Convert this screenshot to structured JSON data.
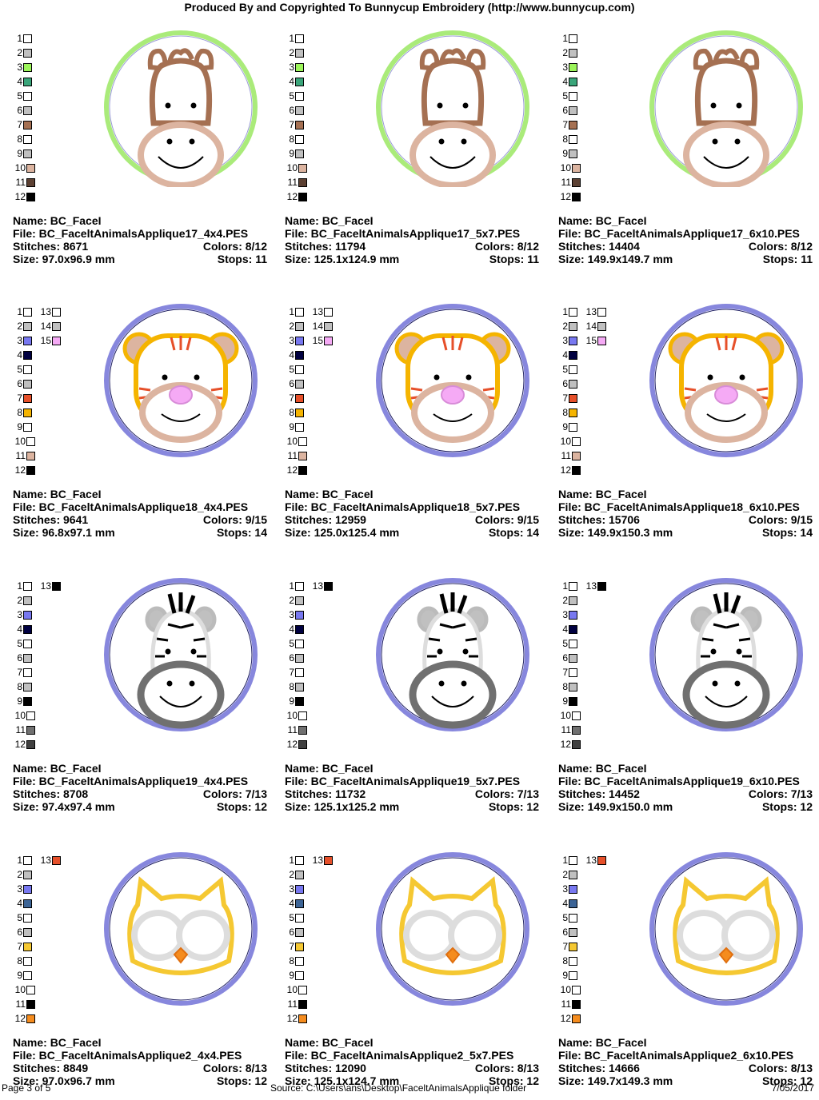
{
  "header": "Produced By and Copyrighted To Bunnycup Embroidery (http://www.bunnycup.com)",
  "labels": {
    "name": "Name:",
    "file": "File:",
    "stitches": "Stitches:",
    "colors": "Colors:",
    "size": "Size:",
    "stops": "Stops:"
  },
  "designs": [
    {
      "animal": "horse",
      "ring_color": "#8ee44e",
      "palette": [
        "#ffffff",
        "#c0c0c0",
        "#9cf55a",
        "#3aa57a",
        "#ffffff",
        "#c0c0c0",
        "#a57052",
        "#ffffff",
        "#c0c0c0",
        "#dcb4a0",
        "#5c4032",
        "#000000"
      ],
      "extra": [],
      "variants": [
        {
          "name": "BC_FaceI",
          "file": "BC_FaceltAnimalsApplique17_4x4.PES",
          "stitches": "8671",
          "colors": "8/12",
          "size": "97.0x96.9 mm",
          "stops": "11"
        },
        {
          "name": "BC_FaceI",
          "file": "BC_FaceltAnimalsApplique17_5x7.PES",
          "stitches": "11794",
          "colors": "8/12",
          "size": "125.1x124.9 mm",
          "stops": "11"
        },
        {
          "name": "BC_FaceI",
          "file": "BC_FaceltAnimalsApplique17_6x10.PES",
          "stitches": "14404",
          "colors": "8/12",
          "size": "149.9x149.7 mm",
          "stops": "11"
        }
      ]
    },
    {
      "animal": "tiger",
      "ring_color": "#5f5fd2",
      "palette": [
        "#ffffff",
        "#c0c0c0",
        "#7878f0",
        "#000040",
        "#ffffff",
        "#c0c0c0",
        "#e6502a",
        "#f5b400",
        "#ffffff",
        "#ffffff",
        "#dcb4a0",
        "#000000"
      ],
      "extra": [
        "#ffffff",
        "#c0c0c0",
        "#f5aaf5"
      ],
      "variants": [
        {
          "name": "BC_FaceI",
          "file": "BC_FaceltAnimalsApplique18_4x4.PES",
          "stitches": "9641",
          "colors": "9/15",
          "size": "96.8x97.1 mm",
          "stops": "14"
        },
        {
          "name": "BC_FaceI",
          "file": "BC_FaceltAnimalsApplique18_5x7.PES",
          "stitches": "12959",
          "colors": "9/15",
          "size": "125.0x125.4 mm",
          "stops": "14"
        },
        {
          "name": "BC_FaceI",
          "file": "BC_FaceltAnimalsApplique18_6x10.PES",
          "stitches": "15706",
          "colors": "9/15",
          "size": "149.9x150.3 mm",
          "stops": "14"
        }
      ]
    },
    {
      "animal": "zebra",
      "ring_color": "#5f5fd2",
      "palette": [
        "#ffffff",
        "#c0c0c0",
        "#7878f0",
        "#000040",
        "#ffffff",
        "#c0c0c0",
        "#ffffff",
        "#c0c0c0",
        "#000000",
        "#ffffff",
        "#707070",
        "#404040"
      ],
      "extra": [
        "#000000"
      ],
      "variants": [
        {
          "name": "BC_FaceI",
          "file": "BC_FaceltAnimalsApplique19_4x4.PES",
          "stitches": "8708",
          "colors": "7/13",
          "size": "97.4x97.4 mm",
          "stops": "12"
        },
        {
          "name": "BC_FaceI",
          "file": "BC_FaceltAnimalsApplique19_5x7.PES",
          "stitches": "11732",
          "colors": "7/13",
          "size": "125.1x125.2 mm",
          "stops": "12"
        },
        {
          "name": "BC_FaceI",
          "file": "BC_FaceltAnimalsApplique19_6x10.PES",
          "stitches": "14452",
          "colors": "7/13",
          "size": "149.9x150.0 mm",
          "stops": "12"
        }
      ]
    },
    {
      "animal": "owl",
      "ring_color": "#5f5fd2",
      "palette": [
        "#ffffff",
        "#c0c0c0",
        "#7878f0",
        "#3c6496",
        "#ffffff",
        "#c0c0c0",
        "#f5c832",
        "#ffffff",
        "#ffffff",
        "#ffffff",
        "#000000",
        "#f58c1e"
      ],
      "extra": [
        "#e6502a"
      ],
      "variants": [
        {
          "name": "BC_FaceI",
          "file": "BC_FaceltAnimalsApplique2_4x4.PES",
          "stitches": "8849",
          "colors": "8/13",
          "size": "97.0x96.7 mm",
          "stops": "12"
        },
        {
          "name": "BC_FaceI",
          "file": "BC_FaceltAnimalsApplique2_5x7.PES",
          "stitches": "12090",
          "colors": "8/13",
          "size": "125.1x124.7 mm",
          "stops": "12"
        },
        {
          "name": "BC_FaceI",
          "file": "BC_FaceltAnimalsApplique2_6x10.PES",
          "stitches": "14666",
          "colors": "8/13",
          "size": "149.7x149.3 mm",
          "stops": "12"
        }
      ]
    }
  ],
  "footer": {
    "page": "Page 3 of 5",
    "source": "Source: C:\\Users\\ans\\Desktop\\FaceltAnimalsApplique folder",
    "date": "7/05/2017"
  }
}
